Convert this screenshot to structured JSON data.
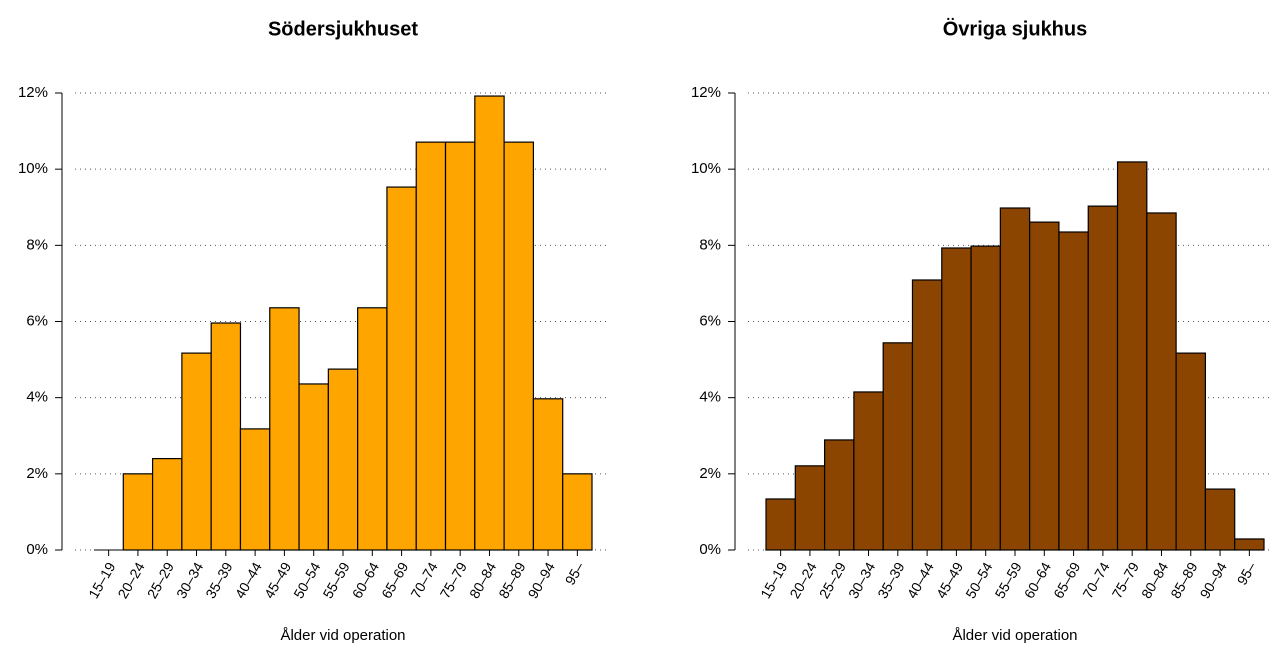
{
  "chart_data": [
    {
      "type": "bar",
      "title": "Södersjukhuset",
      "xlabel": "Ålder vid operation",
      "color": "#ffa500",
      "categories": [
        "15–19",
        "20–24",
        "25–29",
        "30–34",
        "35–39",
        "40–44",
        "45–49",
        "50–54",
        "55–59",
        "60–64",
        "65–69",
        "70–74",
        "75–79",
        "80–84",
        "85–89",
        "90–94",
        "95–"
      ],
      "values": [
        0,
        2.0,
        2.4,
        5.17,
        5.96,
        3.18,
        6.36,
        4.36,
        4.75,
        6.36,
        9.53,
        10.71,
        10.71,
        11.92,
        10.71,
        3.97,
        2.0
      ],
      "ylim": [
        0,
        12
      ],
      "yticks": [
        {
          "value": 0,
          "label": "0%"
        },
        {
          "value": 2,
          "label": "2%"
        },
        {
          "value": 4,
          "label": "4%"
        },
        {
          "value": 6,
          "label": "6%"
        },
        {
          "value": 8,
          "label": "8%"
        },
        {
          "value": 10,
          "label": "10%"
        },
        {
          "value": 12,
          "label": "12%"
        }
      ],
      "grid": true
    },
    {
      "type": "bar",
      "title": "Övriga sjukhus",
      "xlabel": "Ålder vid operation",
      "color": "#8b4500",
      "categories": [
        "15–19",
        "20–24",
        "25–29",
        "30–34",
        "35–39",
        "40–44",
        "45–49",
        "50–54",
        "55–59",
        "60–64",
        "65–69",
        "70–74",
        "75–79",
        "80–84",
        "85–89",
        "90–94",
        "95–"
      ],
      "values": [
        1.34,
        2.21,
        2.89,
        4.15,
        5.44,
        7.09,
        7.93,
        7.98,
        8.98,
        8.61,
        8.35,
        9.03,
        10.19,
        8.85,
        5.17,
        1.6,
        0.29
      ],
      "ylim": [
        0,
        12
      ],
      "yticks": [
        {
          "value": 0,
          "label": "0%"
        },
        {
          "value": 2,
          "label": "2%"
        },
        {
          "value": 4,
          "label": "4%"
        },
        {
          "value": 6,
          "label": "6%"
        },
        {
          "value": 8,
          "label": "8%"
        },
        {
          "value": 10,
          "label": "10%"
        },
        {
          "value": 12,
          "label": "12%"
        }
      ],
      "grid": true
    }
  ]
}
